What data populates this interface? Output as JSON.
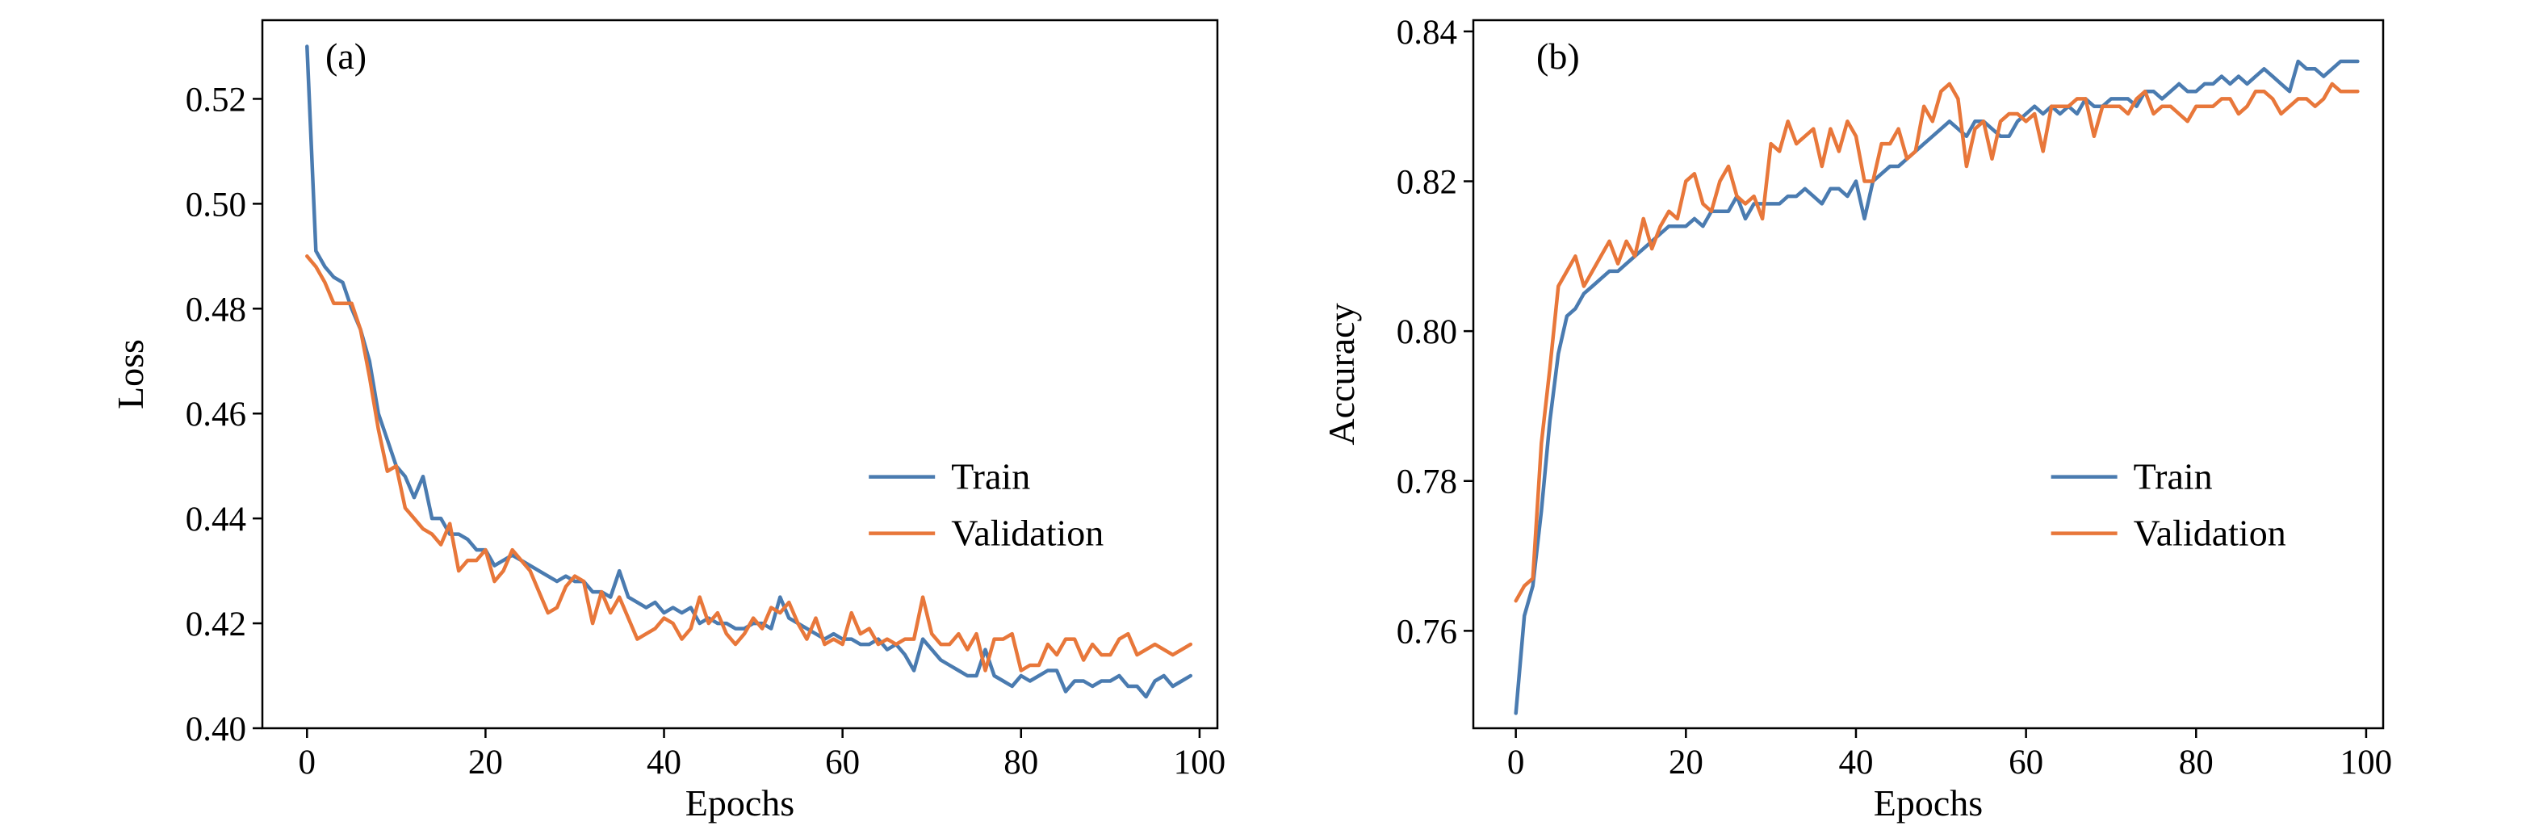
{
  "chart_data": [
    {
      "type": "line",
      "panel_label": "(a)",
      "xlabel": "Epochs",
      "ylabel": "Loss",
      "xlim": [
        -5,
        102
      ],
      "ylim": [
        0.4,
        0.535
      ],
      "xticks": [
        0,
        20,
        40,
        60,
        80,
        100
      ],
      "yticks": [
        0.4,
        0.42,
        0.44,
        0.46,
        0.48,
        0.5,
        0.52
      ],
      "tick_labels_x": [
        "0",
        "20",
        "40",
        "60",
        "80",
        "100"
      ],
      "tick_labels_y": [
        "0.40",
        "0.42",
        "0.44",
        "0.46",
        "0.48",
        "0.50",
        "0.52"
      ],
      "legend_position": "center-right",
      "grid": false,
      "series": [
        {
          "name": "Train",
          "color": "#4a7bb0",
          "x": [
            0,
            1,
            2,
            3,
            4,
            5,
            6,
            7,
            8,
            9,
            10,
            11,
            12,
            13,
            14,
            15,
            16,
            17,
            18,
            19,
            20,
            21,
            22,
            23,
            24,
            25,
            26,
            27,
            28,
            29,
            30,
            31,
            32,
            33,
            34,
            35,
            36,
            37,
            38,
            39,
            40,
            41,
            42,
            43,
            44,
            45,
            46,
            47,
            48,
            49,
            50,
            51,
            52,
            53,
            54,
            55,
            56,
            57,
            58,
            59,
            60,
            61,
            62,
            63,
            64,
            65,
            66,
            67,
            68,
            69,
            70,
            71,
            72,
            73,
            74,
            75,
            76,
            77,
            78,
            79,
            80,
            81,
            82,
            83,
            84,
            85,
            86,
            87,
            88,
            89,
            90,
            91,
            92,
            93,
            94,
            95,
            96,
            97,
            98,
            99
          ],
          "y": [
            0.53,
            0.491,
            0.488,
            0.486,
            0.485,
            0.48,
            0.476,
            0.47,
            0.46,
            0.455,
            0.45,
            0.448,
            0.444,
            0.448,
            0.44,
            0.44,
            0.437,
            0.437,
            0.436,
            0.434,
            0.434,
            0.431,
            0.432,
            0.433,
            0.432,
            0.431,
            0.43,
            0.429,
            0.428,
            0.429,
            0.428,
            0.428,
            0.426,
            0.426,
            0.425,
            0.43,
            0.425,
            0.424,
            0.423,
            0.424,
            0.422,
            0.423,
            0.422,
            0.423,
            0.42,
            0.421,
            0.42,
            0.42,
            0.419,
            0.419,
            0.42,
            0.42,
            0.419,
            0.425,
            0.421,
            0.42,
            0.419,
            0.418,
            0.417,
            0.418,
            0.417,
            0.417,
            0.416,
            0.416,
            0.417,
            0.415,
            0.416,
            0.414,
            0.411,
            0.417,
            0.415,
            0.413,
            0.412,
            0.411,
            0.41,
            0.41,
            0.415,
            0.41,
            0.409,
            0.408,
            0.41,
            0.409,
            0.41,
            0.411,
            0.411,
            0.407,
            0.409,
            0.409,
            0.408,
            0.409,
            0.409,
            0.41,
            0.408,
            0.408,
            0.406,
            0.409,
            0.41,
            0.408,
            0.409,
            0.41
          ]
        },
        {
          "name": "Validation",
          "color": "#e8773a",
          "x": [
            0,
            1,
            2,
            3,
            4,
            5,
            6,
            7,
            8,
            9,
            10,
            11,
            12,
            13,
            14,
            15,
            16,
            17,
            18,
            19,
            20,
            21,
            22,
            23,
            24,
            25,
            26,
            27,
            28,
            29,
            30,
            31,
            32,
            33,
            34,
            35,
            36,
            37,
            38,
            39,
            40,
            41,
            42,
            43,
            44,
            45,
            46,
            47,
            48,
            49,
            50,
            51,
            52,
            53,
            54,
            55,
            56,
            57,
            58,
            59,
            60,
            61,
            62,
            63,
            64,
            65,
            66,
            67,
            68,
            69,
            70,
            71,
            72,
            73,
            74,
            75,
            76,
            77,
            78,
            79,
            80,
            81,
            82,
            83,
            84,
            85,
            86,
            87,
            88,
            89,
            90,
            91,
            92,
            93,
            94,
            95,
            96,
            97,
            98,
            99
          ],
          "y": [
            0.49,
            0.488,
            0.485,
            0.481,
            0.481,
            0.481,
            0.476,
            0.467,
            0.457,
            0.449,
            0.45,
            0.442,
            0.44,
            0.438,
            0.437,
            0.435,
            0.439,
            0.43,
            0.432,
            0.432,
            0.434,
            0.428,
            0.43,
            0.434,
            0.432,
            0.43,
            0.426,
            0.422,
            0.423,
            0.427,
            0.429,
            0.428,
            0.42,
            0.426,
            0.422,
            0.425,
            0.421,
            0.417,
            0.418,
            0.419,
            0.421,
            0.42,
            0.417,
            0.419,
            0.425,
            0.42,
            0.422,
            0.418,
            0.416,
            0.418,
            0.421,
            0.419,
            0.423,
            0.422,
            0.424,
            0.42,
            0.417,
            0.421,
            0.416,
            0.417,
            0.416,
            0.422,
            0.418,
            0.419,
            0.416,
            0.417,
            0.416,
            0.417,
            0.417,
            0.425,
            0.418,
            0.416,
            0.416,
            0.418,
            0.415,
            0.418,
            0.411,
            0.417,
            0.417,
            0.418,
            0.411,
            0.412,
            0.412,
            0.416,
            0.414,
            0.417,
            0.417,
            0.413,
            0.416,
            0.414,
            0.414,
            0.417,
            0.418,
            0.414,
            0.415,
            0.416,
            0.415,
            0.414,
            0.415,
            0.416
          ]
        }
      ]
    },
    {
      "type": "line",
      "panel_label": "(b)",
      "xlabel": "Epochs",
      "ylabel": "Accuracy",
      "xlim": [
        -5,
        102
      ],
      "ylim": [
        0.747,
        0.8415
      ],
      "xticks": [
        0,
        20,
        40,
        60,
        80,
        100
      ],
      "yticks": [
        0.76,
        0.78,
        0.8,
        0.82,
        0.84
      ],
      "tick_labels_x": [
        "0",
        "20",
        "40",
        "60",
        "80",
        "100"
      ],
      "tick_labels_y": [
        "0.76",
        "0.78",
        "0.80",
        "0.82",
        "0.84"
      ],
      "legend_position": "center-right",
      "grid": false,
      "series": [
        {
          "name": "Train",
          "color": "#4a7bb0",
          "x": [
            0,
            1,
            2,
            3,
            4,
            5,
            6,
            7,
            8,
            9,
            10,
            11,
            12,
            13,
            14,
            15,
            16,
            17,
            18,
            19,
            20,
            21,
            22,
            23,
            24,
            25,
            26,
            27,
            28,
            29,
            30,
            31,
            32,
            33,
            34,
            35,
            36,
            37,
            38,
            39,
            40,
            41,
            42,
            43,
            44,
            45,
            46,
            47,
            48,
            49,
            50,
            51,
            52,
            53,
            54,
            55,
            56,
            57,
            58,
            59,
            60,
            61,
            62,
            63,
            64,
            65,
            66,
            67,
            68,
            69,
            70,
            71,
            72,
            73,
            74,
            75,
            76,
            77,
            78,
            79,
            80,
            81,
            82,
            83,
            84,
            85,
            86,
            87,
            88,
            89,
            90,
            91,
            92,
            93,
            94,
            95,
            96,
            97,
            98,
            99
          ],
          "y": [
            0.749,
            0.762,
            0.766,
            0.776,
            0.788,
            0.797,
            0.802,
            0.803,
            0.805,
            0.806,
            0.807,
            0.808,
            0.808,
            0.809,
            0.81,
            0.811,
            0.812,
            0.813,
            0.814,
            0.814,
            0.814,
            0.815,
            0.814,
            0.816,
            0.816,
            0.816,
            0.818,
            0.815,
            0.817,
            0.817,
            0.817,
            0.817,
            0.818,
            0.818,
            0.819,
            0.818,
            0.817,
            0.819,
            0.819,
            0.818,
            0.82,
            0.815,
            0.82,
            0.821,
            0.822,
            0.822,
            0.823,
            0.824,
            0.825,
            0.826,
            0.827,
            0.828,
            0.827,
            0.826,
            0.828,
            0.828,
            0.827,
            0.826,
            0.826,
            0.828,
            0.829,
            0.83,
            0.829,
            0.83,
            0.829,
            0.83,
            0.829,
            0.831,
            0.83,
            0.83,
            0.831,
            0.831,
            0.831,
            0.83,
            0.832,
            0.832,
            0.831,
            0.832,
            0.833,
            0.832,
            0.832,
            0.833,
            0.833,
            0.834,
            0.833,
            0.834,
            0.833,
            0.834,
            0.835,
            0.834,
            0.833,
            0.832,
            0.836,
            0.835,
            0.835,
            0.834,
            0.835,
            0.836,
            0.836,
            0.836
          ]
        },
        {
          "name": "Validation",
          "color": "#e8773a",
          "x": [
            0,
            1,
            2,
            3,
            4,
            5,
            6,
            7,
            8,
            9,
            10,
            11,
            12,
            13,
            14,
            15,
            16,
            17,
            18,
            19,
            20,
            21,
            22,
            23,
            24,
            25,
            26,
            27,
            28,
            29,
            30,
            31,
            32,
            33,
            34,
            35,
            36,
            37,
            38,
            39,
            40,
            41,
            42,
            43,
            44,
            45,
            46,
            47,
            48,
            49,
            50,
            51,
            52,
            53,
            54,
            55,
            56,
            57,
            58,
            59,
            60,
            61,
            62,
            63,
            64,
            65,
            66,
            67,
            68,
            69,
            70,
            71,
            72,
            73,
            74,
            75,
            76,
            77,
            78,
            79,
            80,
            81,
            82,
            83,
            84,
            85,
            86,
            87,
            88,
            89,
            90,
            91,
            92,
            93,
            94,
            95,
            96,
            97,
            98,
            99
          ],
          "y": [
            0.764,
            0.766,
            0.767,
            0.785,
            0.795,
            0.806,
            0.808,
            0.81,
            0.806,
            0.808,
            0.81,
            0.812,
            0.809,
            0.812,
            0.81,
            0.815,
            0.811,
            0.814,
            0.816,
            0.815,
            0.82,
            0.821,
            0.817,
            0.816,
            0.82,
            0.822,
            0.818,
            0.817,
            0.818,
            0.815,
            0.825,
            0.824,
            0.828,
            0.825,
            0.826,
            0.827,
            0.822,
            0.827,
            0.824,
            0.828,
            0.826,
            0.82,
            0.82,
            0.825,
            0.825,
            0.827,
            0.823,
            0.824,
            0.83,
            0.828,
            0.832,
            0.833,
            0.831,
            0.822,
            0.827,
            0.828,
            0.823,
            0.828,
            0.829,
            0.829,
            0.828,
            0.829,
            0.824,
            0.83,
            0.83,
            0.83,
            0.831,
            0.831,
            0.826,
            0.83,
            0.83,
            0.83,
            0.829,
            0.831,
            0.832,
            0.829,
            0.83,
            0.83,
            0.829,
            0.828,
            0.83,
            0.83,
            0.83,
            0.831,
            0.831,
            0.829,
            0.83,
            0.832,
            0.832,
            0.831,
            0.829,
            0.83,
            0.831,
            0.831,
            0.83,
            0.831,
            0.833,
            0.832,
            0.832,
            0.832
          ]
        }
      ]
    }
  ]
}
